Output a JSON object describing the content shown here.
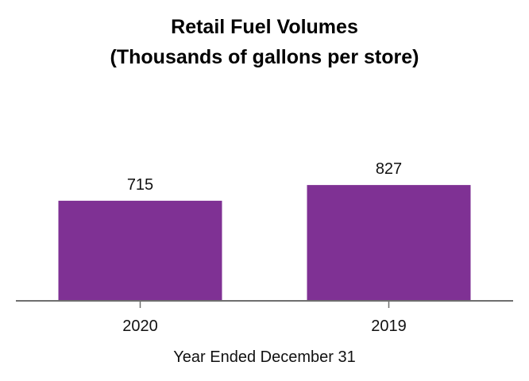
{
  "chart_data": {
    "type": "bar",
    "title": "Retail Fuel Volumes",
    "subtitle": "(Thousands of gallons per store)",
    "categories": [
      "2020",
      "2019"
    ],
    "values": [
      715,
      827
    ],
    "data_labels": [
      "715",
      "827"
    ],
    "xlabel": "Year Ended December 31",
    "ylabel": "",
    "ylim": [
      0,
      1000
    ],
    "grid": false,
    "legend": "none",
    "colors": {
      "bar": "#7f3194",
      "axis": "#6e6e6e"
    }
  }
}
